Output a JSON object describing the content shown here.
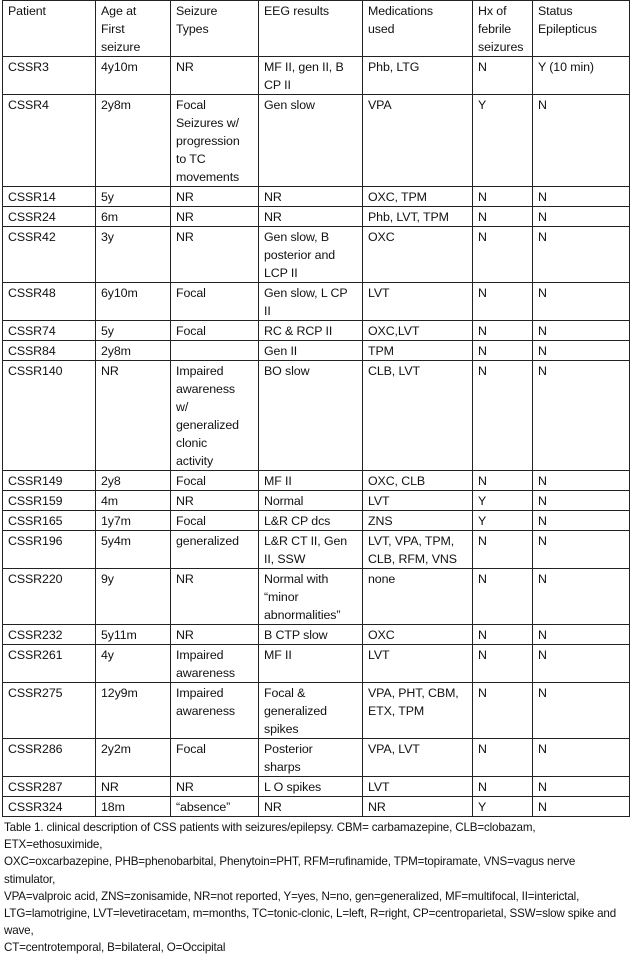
{
  "table": {
    "headers": [
      "Patient",
      "Age at\nFirst\nseizure",
      "Seizure\nTypes",
      "EEG results",
      "Medications\nused",
      "Hx of\nfebrile\nseizures",
      "Status\nEpilepticus"
    ],
    "rows": [
      [
        "CSSR3",
        "4y10m",
        "NR",
        "MF II, gen II, B\nCP II",
        "Phb, LTG",
        "N",
        "Y (10 min)"
      ],
      [
        "CSSR4",
        "2y8m",
        "Focal\nSeizures w/\nprogression\nto TC\nmovements",
        "Gen slow",
        "VPA",
        "Y",
        "N"
      ],
      [
        "CSSR14",
        "5y",
        "NR",
        "NR",
        "OXC, TPM",
        "N",
        "N"
      ],
      [
        "CSSR24",
        "6m",
        "NR",
        "NR",
        "Phb, LVT, TPM",
        "N",
        "N"
      ],
      [
        "CSSR42",
        "3y",
        "NR",
        "Gen slow, B\nposterior and\nLCP II",
        "OXC",
        "N",
        "N"
      ],
      [
        "CSSR48",
        "6y10m",
        "Focal",
        "Gen slow, L CP\nII",
        "LVT",
        "N",
        "N"
      ],
      [
        "CSSR74",
        "5y",
        "Focal",
        "RC & RCP II",
        "OXC,LVT",
        "N",
        "N"
      ],
      [
        "CSSR84",
        "2y8m",
        "",
        "Gen II",
        "TPM",
        "N",
        "N"
      ],
      [
        "CSSR140",
        "NR",
        "Impaired\nawareness\nw/\ngeneralized\nclonic\nactivity",
        "BO slow",
        "CLB, LVT",
        "N",
        "N"
      ],
      [
        "CSSR149",
        "2y8",
        "Focal",
        "MF II",
        "OXC, CLB",
        "N",
        "N"
      ],
      [
        "CSSR159",
        "4m",
        "NR",
        "Normal",
        "LVT",
        "Y",
        "N"
      ],
      [
        "CSSR165",
        "1y7m",
        "Focal",
        "L&R CP dcs",
        "ZNS",
        "Y",
        "N"
      ],
      [
        "CSSR196",
        "5y4m",
        "generalized",
        "L&R CT II, Gen\nII, SSW",
        "LVT, VPA, TPM,\nCLB, RFM, VNS",
        "N",
        "N"
      ],
      [
        "CSSR220",
        "9y",
        "NR",
        "Normal with\n“minor\nabnormalities”",
        "none",
        "N",
        "N"
      ],
      [
        "CSSR232",
        "5y11m",
        "NR",
        "B CTP slow",
        "OXC",
        "N",
        "N"
      ],
      [
        "CSSR261",
        "4y",
        "Impaired\nawareness",
        "MF II",
        "LVT",
        "N",
        "N"
      ],
      [
        "CSSR275",
        "12y9m",
        "Impaired\nawareness",
        "Focal &\ngeneralized\nspikes",
        "VPA, PHT, CBM,\nETX, TPM",
        "N",
        "N"
      ],
      [
        "CSSR286",
        "2y2m",
        "Focal",
        "Posterior\nsharps",
        "VPA, LVT",
        "N",
        "N"
      ],
      [
        "CSSR287",
        "NR",
        "NR",
        "L O spikes",
        "LVT",
        "N",
        "N"
      ],
      [
        "CSSR324",
        "18m",
        "“absence”",
        "NR",
        "NR",
        "Y",
        "N"
      ]
    ]
  },
  "caption": "Table 1. clinical description of CSS patients with seizures/epilepsy. CBM= carbamazepine, CLB=clobazam, ETX=ethosuximide,\nOXC=oxcarbazepine, PHB=phenobarbital, Phenytoin=PHT, RFM=rufinamide, TPM=topiramate, VNS=vagus nerve stimulator,\nVPA=valproic acid, ZNS=zonisamide,  NR=not reported, Y=yes, N=no, gen=generalized, MF=multifocal, II=interictal,\nLTG=lamotrigine, LVT=levetiracetam, m=months, TC=tonic-clonic, L=left, R=right, CP=centroparietal, SSW=slow spike and wave,\nCT=centrotemporal, B=bilateral, O=Occipital"
}
